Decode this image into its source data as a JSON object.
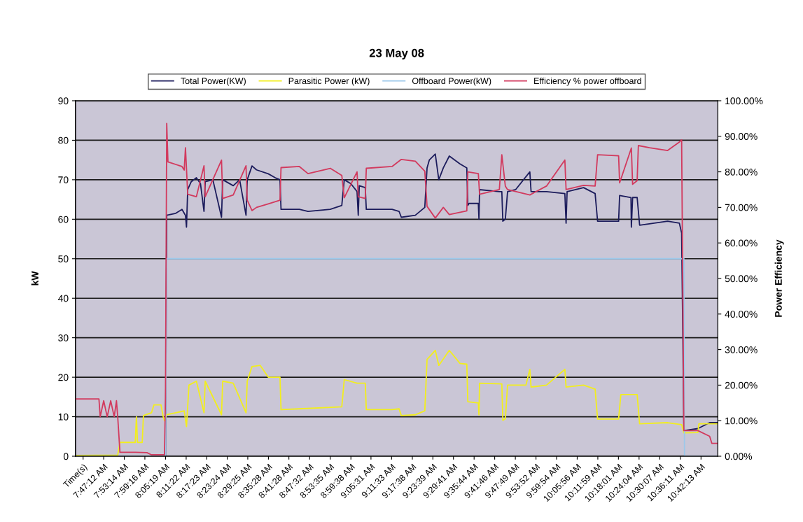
{
  "chart_data": {
    "type": "line",
    "title": "23 May 08",
    "ylabel": "kW",
    "y2label": "Power Efficiency",
    "xlim": [
      7.6489,
      10.786
    ],
    "xticks": [
      {
        "value": 7.68611,
        "label": "Time(s)"
      },
      {
        "value": 7.78667,
        "label": "7:47:12 AM"
      },
      {
        "value": 7.88722,
        "label": "7:53:14 AM"
      },
      {
        "value": 7.98778,
        "label": "7:59:16 AM"
      },
      {
        "value": 8.08861,
        "label": "8:05:19 AM"
      },
      {
        "value": 8.18944,
        "label": "8:11:22 AM"
      },
      {
        "value": 8.28972,
        "label": "8:17:23 AM"
      },
      {
        "value": 8.39,
        "label": "8:23:24 AM"
      },
      {
        "value": 8.49028,
        "label": "8:29:25 AM"
      },
      {
        "value": 8.59111,
        "label": "8:35:28 AM"
      },
      {
        "value": 8.69111,
        "label": "8:41:28 AM"
      },
      {
        "value": 8.79222,
        "label": "8:47:32 AM"
      },
      {
        "value": 8.89306,
        "label": "8:53:35 AM"
      },
      {
        "value": 8.99389,
        "label": "8:59:38 AM"
      },
      {
        "value": 9.09194,
        "label": "9:05:31 AM"
      },
      {
        "value": 9.1925,
        "label": "9:11:33 AM"
      },
      {
        "value": 9.29389,
        "label": "9:17:38 AM"
      },
      {
        "value": 9.39417,
        "label": "9:23:39 AM"
      },
      {
        "value": 9.49472,
        "label": "9:29:41 AM"
      },
      {
        "value": 9.59556,
        "label": "9:35:44 AM"
      },
      {
        "value": 9.69611,
        "label": "9:41:46 AM"
      },
      {
        "value": 9.79694,
        "label": "9:47:49 AM"
      },
      {
        "value": 9.89778,
        "label": "9:53:52 AM"
      },
      {
        "value": 9.99833,
        "label": "9:59:54 AM"
      },
      {
        "value": 10.09889,
        "label": "10:05:56 AM"
      },
      {
        "value": 10.19972,
        "label": "10:11:59 AM"
      },
      {
        "value": 10.30028,
        "label": "10:18:01 AM"
      },
      {
        "value": 10.40111,
        "label": "10:24:04 AM"
      },
      {
        "value": 10.50194,
        "label": "10:30:07 AM"
      },
      {
        "value": 10.60306,
        "label": "10:36:11 AM"
      },
      {
        "value": 10.70361,
        "label": "10:42:13 AM"
      }
    ],
    "ylim": [
      0,
      90
    ],
    "yticks": [
      0,
      10,
      20,
      30,
      40,
      50,
      60,
      70,
      80,
      90
    ],
    "y2lim": [
      0,
      100
    ],
    "y2ticks": [
      {
        "value": 0,
        "label": "0.00%"
      },
      {
        "value": 10,
        "label": "10.00%"
      },
      {
        "value": 20,
        "label": "20.00%"
      },
      {
        "value": 30,
        "label": "30.00%"
      },
      {
        "value": 40,
        "label": "40.00%"
      },
      {
        "value": 50,
        "label": "50.00%"
      },
      {
        "value": 60,
        "label": "60.00%"
      },
      {
        "value": 70,
        "label": "70.00%"
      },
      {
        "value": 80,
        "label": "80.00%"
      },
      {
        "value": 90,
        "label": "90.00%"
      },
      {
        "value": 100,
        "label": "100.00%"
      }
    ],
    "grid": "y",
    "legend": "top",
    "series": [
      {
        "name": "Total Power(KW)",
        "color": "#1c1c5c",
        "x": [
          7.6489,
          8.0884,
          8.0945,
          8.1387,
          8.1689,
          8.186,
          8.191,
          8.197,
          8.2141,
          8.2393,
          8.2594,
          8.2765,
          8.2825,
          8.3198,
          8.362,
          8.368,
          8.4193,
          8.4505,
          8.4817,
          8.4877,
          8.5109,
          8.533,
          8.5903,
          8.6245,
          8.6476,
          8.6527,
          8.7422,
          8.7844,
          8.8931,
          8.9494,
          8.9615,
          8.9936,
          9.0238,
          9.0298,
          9.0349,
          9.064,
          9.0691,
          9.1948,
          9.229,
          9.2401,
          9.3085,
          9.3547,
          9.3658,
          9.3768,
          9.406,
          9.4231,
          9.4452,
          9.4744,
          9.5267,
          9.5599,
          9.5649,
          9.571,
          9.6162,
          9.6192,
          9.6223,
          9.7188,
          9.7309,
          9.7359,
          9.748,
          9.759,
          9.7983,
          9.8677,
          9.8737,
          9.9491,
          10.0387,
          10.0447,
          10.0497,
          10.1302,
          10.1865,
          10.1986,
          10.3012,
          10.3062,
          10.3615,
          10.3635,
          10.3696,
          10.3917,
          10.4038,
          10.5406,
          10.5979,
          10.609,
          10.62,
          10.6884,
          10.7457,
          10.786
        ],
        "values": [
          0,
          0,
          61,
          61.5,
          62.5,
          61,
          58,
          67.5,
          69.5,
          70.5,
          69,
          62,
          69.5,
          70,
          60.5,
          70,
          68.5,
          70,
          61,
          70,
          73.5,
          72.5,
          71.5,
          70.5,
          70,
          62.5,
          62.5,
          62,
          62.5,
          63.5,
          70,
          69,
          67,
          61,
          68.5,
          68,
          62.5,
          62.5,
          62,
          60.5,
          61,
          63,
          73,
          75,
          76.5,
          70,
          73,
          76,
          74,
          73,
          63.5,
          64,
          64,
          60,
          67.5,
          67,
          67,
          59.5,
          60,
          67,
          67.5,
          72,
          67,
          67,
          66.5,
          59,
          67,
          68,
          66.5,
          59.5,
          59.5,
          66,
          65.5,
          58,
          65.5,
          65.5,
          58.5,
          59.5,
          59,
          56.5,
          6.5,
          7,
          8.5,
          8.5
        ]
      },
      {
        "name": "Parasitic Power (kW)",
        "color": "#f2ee1e",
        "x": [
          7.6489,
          7.8551,
          7.8661,
          7.9406,
          7.9466,
          7.9516,
          7.9748,
          7.9808,
          8.02,
          8.0321,
          8.0663,
          8.0774,
          8.0834,
          8.0945,
          8.1387,
          8.1799,
          8.191,
          8.2031,
          8.2393,
          8.2765,
          8.2825,
          8.362,
          8.368,
          8.4193,
          8.4817,
          8.4877,
          8.5109,
          8.5511,
          8.5903,
          8.6476,
          8.6527,
          8.7422,
          8.9494,
          8.9615,
          9.0238,
          9.064,
          9.0691,
          9.1948,
          9.229,
          9.2401,
          9.3085,
          9.3547,
          9.3658,
          9.406,
          9.4231,
          9.4744,
          9.5267,
          9.5599,
          9.5649,
          9.6162,
          9.6192,
          9.6223,
          9.7309,
          9.7359,
          9.748,
          9.759,
          9.8486,
          9.8677,
          9.8737,
          9.9491,
          10.0387,
          10.0447,
          10.1302,
          10.1865,
          10.1986,
          10.3012,
          10.3122,
          10.3917,
          10.4038,
          10.5406,
          10.609,
          10.62,
          10.6884,
          10.6934,
          10.786
        ],
        "values": [
          0.2,
          0.3,
          3.5,
          3.5,
          10,
          3.5,
          3.5,
          10.3,
          11,
          13,
          13,
          10,
          9,
          10.5,
          11,
          11.5,
          7.5,
          18,
          19,
          11,
          19,
          10.5,
          19,
          18.5,
          11,
          19,
          22.7,
          23,
          20,
          20,
          11.8,
          12,
          12.5,
          19.4,
          18.5,
          18.5,
          11.8,
          11.8,
          12,
          10.3,
          10.5,
          11.5,
          24.5,
          26.8,
          23,
          26.8,
          23.5,
          23.3,
          13.8,
          13.5,
          10.5,
          18.5,
          18.3,
          9.1,
          9.5,
          18,
          18,
          22,
          17.5,
          18,
          22,
          17.5,
          18,
          17,
          9.4,
          9.4,
          15.6,
          15.6,
          8.2,
          8.5,
          8,
          5.9,
          6,
          8.2,
          8.2
        ]
      },
      {
        "name": "Offboard Power(kW)",
        "color": "#9cc8ea",
        "x": [
          7.6489,
          8.0884,
          8.0945,
          10.62,
          10.623,
          10.786
        ],
        "values": [
          0,
          0,
          50,
          50,
          0,
          0
        ]
      },
      {
        "name": "Efficiency % power offboard",
        "color": "#d23a5e",
        "axis": "y2",
        "x": [
          7.6489,
          7.7635,
          7.7696,
          7.7867,
          7.8038,
          7.8209,
          7.838,
          7.849,
          7.8551,
          7.8661,
          7.9406,
          7.9979,
          8.02,
          8.0834,
          8.0884,
          8.0945,
          8.1005,
          8.1689,
          8.1799,
          8.186,
          8.197,
          8.2393,
          8.2765,
          8.2825,
          8.362,
          8.368,
          8.4193,
          8.4817,
          8.4877,
          8.5109,
          8.533,
          8.5903,
          8.6476,
          8.6527,
          8.7422,
          8.7844,
          8.8931,
          8.9494,
          8.9615,
          9.0238,
          9.0298,
          9.064,
          9.0691,
          9.1948,
          9.2401,
          9.3085,
          9.3547,
          9.3658,
          9.406,
          9.4452,
          9.4744,
          9.5599,
          9.5649,
          9.6162,
          9.6223,
          9.7188,
          9.7309,
          9.748,
          9.759,
          9.8677,
          9.9491,
          10.0387,
          10.0447,
          10.1302,
          10.1865,
          10.1986,
          10.3012,
          10.3062,
          10.3635,
          10.3696,
          10.3917,
          10.3977,
          10.4521,
          10.5406,
          10.5979,
          10.609,
          10.62,
          10.6884,
          10.7457,
          10.7567,
          10.786
        ],
        "values": [
          16.1,
          16.1,
          11.1,
          15.6,
          11.1,
          15.6,
          11.1,
          15.6,
          11.1,
          1.1,
          1.1,
          1.0,
          0.4,
          0.4,
          16.6,
          93.6,
          82.8,
          81.5,
          80.5,
          86.8,
          73.7,
          73,
          81.7,
          73,
          83.3,
          72.5,
          73.5,
          81.7,
          72,
          69.1,
          70,
          71,
          72,
          81.2,
          81.5,
          79.5,
          81,
          79,
          72.7,
          80,
          73,
          72.5,
          81,
          81.5,
          83.5,
          83,
          80.2,
          70.3,
          67,
          70,
          68,
          69,
          80,
          79.5,
          73.7,
          75,
          84.8,
          76,
          75,
          73.5,
          76,
          83.3,
          75,
          76.2,
          76,
          84.8,
          84.5,
          76.9,
          86.7,
          76.5,
          77.5,
          87.4,
          86.8,
          86,
          88.4,
          89,
          7.2,
          7.2,
          5.6,
          3.6,
          3.6
        ]
      }
    ]
  }
}
